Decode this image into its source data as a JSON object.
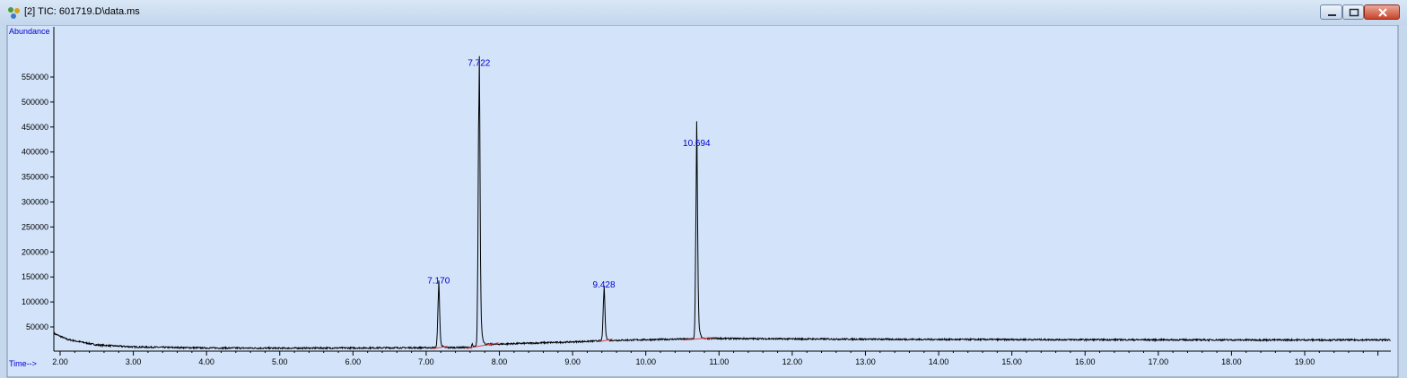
{
  "window": {
    "title": "[2] TIC: 601719.D\\data.ms",
    "controls": [
      "minimize-icon",
      "maximize-icon",
      "close-icon"
    ],
    "accent_bg": "#d2e3fa"
  },
  "chart_data": {
    "type": "line",
    "ylabel": "Abundance",
    "xlabel": "Time-->",
    "xlim": [
      1.95,
      20.2
    ],
    "ylim": [
      0,
      600000
    ],
    "x_ticks": [
      "2.00",
      "3.00",
      "4.00",
      "5.00",
      "6.00",
      "7.00",
      "8.00",
      "9.00",
      "10.00",
      "11.00",
      "12.00",
      "13.00",
      "14.00",
      "15.00",
      "16.00",
      "17.00",
      "18.00",
      "19.00"
    ],
    "y_ticks": [
      "50000",
      "100000",
      "150000",
      "200000",
      "250000",
      "300000",
      "350000",
      "400000",
      "450000",
      "500000",
      "550000"
    ],
    "grid": false,
    "baseline": {
      "x": [
        1.9,
        2.1,
        2.5,
        3.0,
        4.0,
        5.0,
        6.0,
        7.0,
        7.6,
        7.85,
        8.3,
        9.0,
        9.5,
        10.2,
        11.0,
        12.0,
        14.0,
        16.0,
        18.0,
        20.2
      ],
      "y": [
        38000,
        25000,
        14000,
        10000,
        8000,
        7500,
        8000,
        8500,
        9000,
        15000,
        17000,
        20000,
        23000,
        25000,
        27000,
        26000,
        25000,
        24500,
        24000,
        24000
      ]
    },
    "peaks": [
      {
        "rt": 7.17,
        "label": "7.170",
        "height": 130000
      },
      {
        "rt": 7.722,
        "label": "7.722",
        "height": 565000
      },
      {
        "rt": 9.428,
        "label": "9.428",
        "height": 122000
      },
      {
        "rt": 10.694,
        "label": "10.694",
        "height": 405000
      }
    ],
    "colors": {
      "trace": "#000000",
      "label": "#0000cc",
      "integration": "#e04040",
      "plot_bg": "#d2e3fa"
    }
  }
}
